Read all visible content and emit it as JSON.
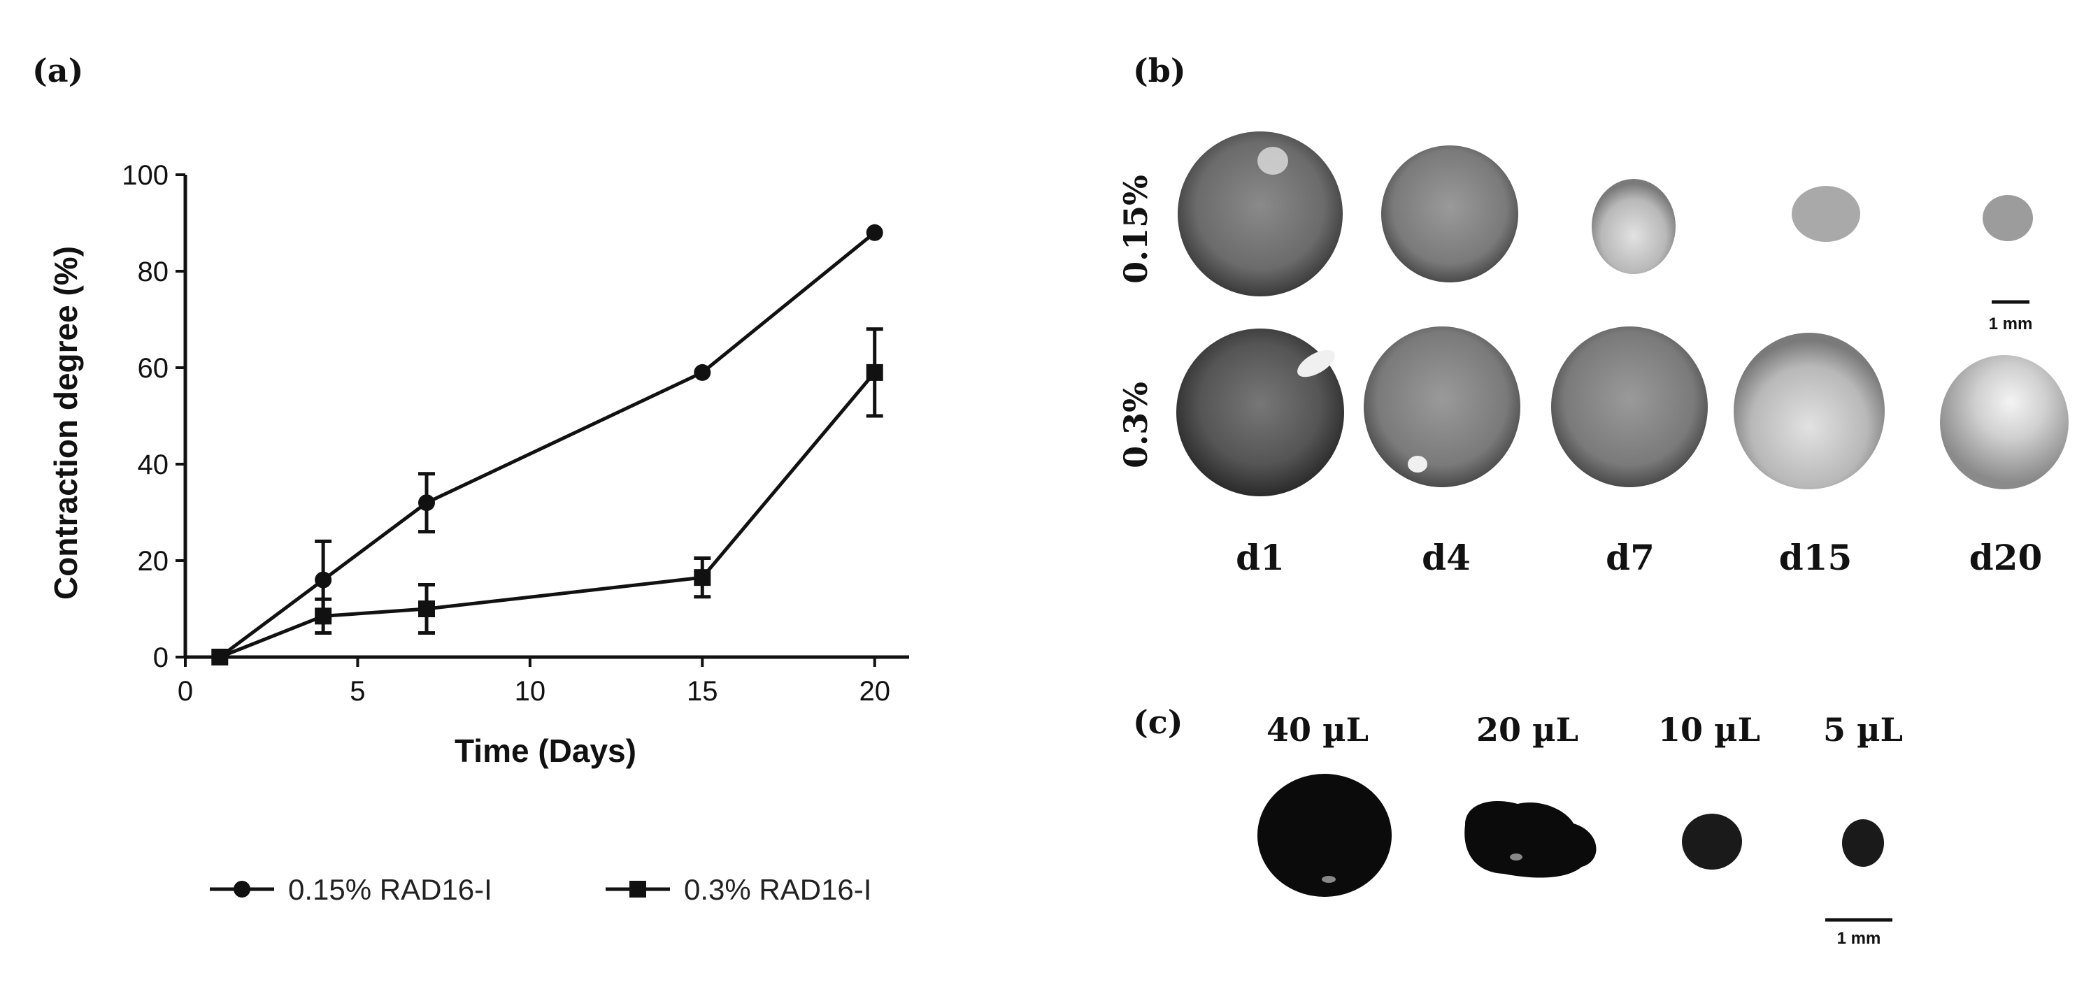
{
  "panels": {
    "a": "(a)",
    "b": "(b)",
    "c": "(c)"
  },
  "chart_data": {
    "type": "line",
    "title": "",
    "xlabel": "Time (Days)",
    "ylabel": "Contraction degree (%)",
    "xlim": [
      0,
      21
    ],
    "ylim": [
      0,
      100
    ],
    "xticks": [
      0,
      5,
      10,
      15,
      20
    ],
    "yticks": [
      0,
      20,
      40,
      60,
      80,
      100
    ],
    "x": [
      1,
      4,
      7,
      15,
      20
    ],
    "legend_position": "bottom",
    "grid": false,
    "series": [
      {
        "name": "0.15% RAD16-I",
        "marker": "circle",
        "values": [
          0,
          16,
          32,
          59,
          88
        ],
        "errors": [
          0,
          8,
          6,
          0,
          0
        ]
      },
      {
        "name": "0.3% RAD16-I",
        "marker": "square",
        "values": [
          0,
          8.5,
          10,
          16.5,
          59
        ],
        "errors": [
          0,
          3.5,
          5,
          4,
          9
        ]
      }
    ]
  },
  "panel_b": {
    "row_labels": [
      "0.15%",
      "0.3%"
    ],
    "day_labels": [
      "d1",
      "d4",
      "d7",
      "d15",
      "d20"
    ],
    "scale_bar": "1 mm"
  },
  "panel_c": {
    "volume_labels": [
      "40 µL",
      "20 µL",
      "10 µL",
      "5 µL"
    ],
    "scale_bar": "1 mm"
  }
}
